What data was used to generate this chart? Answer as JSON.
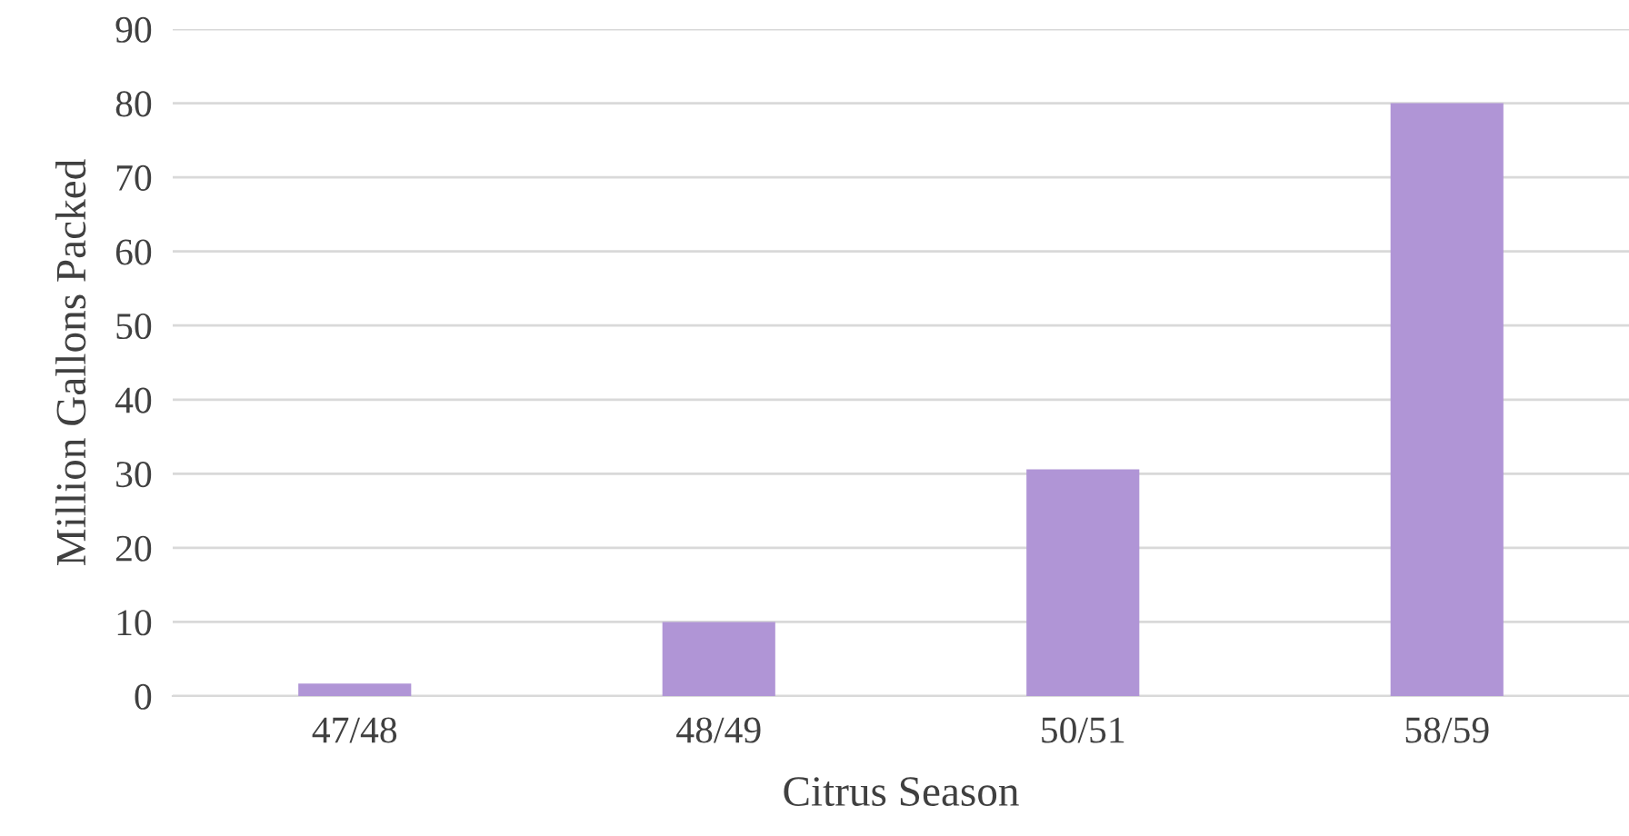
{
  "chart_data": {
    "type": "bar",
    "xlabel": "Citrus Season",
    "ylabel": "Million Gallons Packed",
    "categories": [
      "47/48",
      "48/49",
      "50/51",
      "58/59"
    ],
    "values": [
      1.7,
      10,
      30.6,
      80
    ],
    "color": "#b095d6",
    "ylim": [
      0,
      90
    ],
    "yticks": [
      0,
      10,
      20,
      30,
      40,
      50,
      60,
      70,
      80,
      90
    ],
    "grid": "y",
    "legend": false
  }
}
